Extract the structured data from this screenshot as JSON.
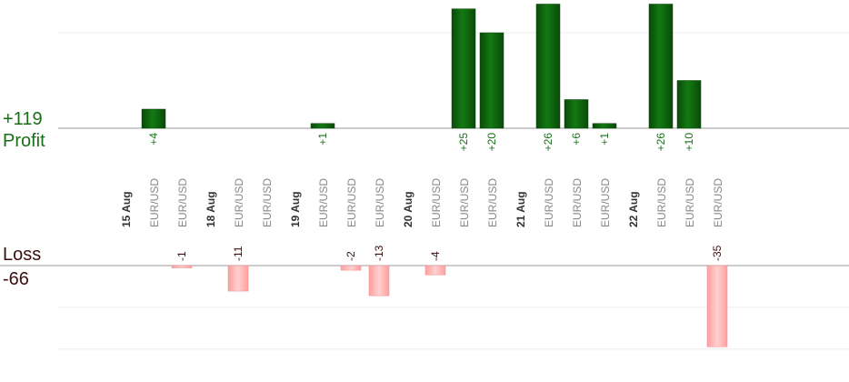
{
  "summary": {
    "profit_value": "+119",
    "profit_label": "Profit",
    "loss_label": "Loss",
    "loss_value": "-66"
  },
  "colors": {
    "profit_bar": "#0c5c0c",
    "loss_bar": "#ffb3b3",
    "profit_text": "#1a6e1a",
    "loss_text": "#3a1010",
    "grid": "#eeeeee",
    "axis": "#999999"
  },
  "chart_data": {
    "type": "bar",
    "profit_panel": {
      "ylim": [
        0,
        52
      ],
      "grid_values": [
        20,
        40
      ]
    },
    "loss_panel": {
      "ylim": [
        0,
        45
      ],
      "grid_values": [
        18,
        36
      ]
    },
    "columns": [
      {
        "kind": "date",
        "label": "15 Aug"
      },
      {
        "kind": "trade",
        "label": "EUR/USD",
        "value": 4,
        "value_label": "+4"
      },
      {
        "kind": "trade",
        "label": "EUR/USD",
        "value": -1,
        "value_label": "-1"
      },
      {
        "kind": "date",
        "label": "18 Aug"
      },
      {
        "kind": "trade",
        "label": "EUR/USD",
        "value": -11,
        "value_label": "-11"
      },
      {
        "kind": "trade",
        "label": "EUR/USD",
        "value": null,
        "value_label": ""
      },
      {
        "kind": "date",
        "label": "19 Aug"
      },
      {
        "kind": "trade",
        "label": "EUR/USD",
        "value": 1,
        "value_label": "+1"
      },
      {
        "kind": "trade",
        "label": "EUR/USD",
        "value": -2,
        "value_label": "-2"
      },
      {
        "kind": "trade",
        "label": "EUR/USD",
        "value": -13,
        "value_label": "-13"
      },
      {
        "kind": "date",
        "label": "20 Aug"
      },
      {
        "kind": "trade",
        "label": "EUR/USD",
        "value": -4,
        "value_label": "-4"
      },
      {
        "kind": "trade",
        "label": "EUR/USD",
        "value": 25,
        "value_label": "+25"
      },
      {
        "kind": "trade",
        "label": "EUR/USD",
        "value": 20,
        "value_label": "+20"
      },
      {
        "kind": "date",
        "label": "21 Aug"
      },
      {
        "kind": "trade",
        "label": "EUR/USD",
        "value": 26,
        "value_label": "+26"
      },
      {
        "kind": "trade",
        "label": "EUR/USD",
        "value": 6,
        "value_label": "+6"
      },
      {
        "kind": "trade",
        "label": "EUR/USD",
        "value": 1,
        "value_label": "+1"
      },
      {
        "kind": "date",
        "label": "22 Aug"
      },
      {
        "kind": "trade",
        "label": "EUR/USD",
        "value": 26,
        "value_label": "+26"
      },
      {
        "kind": "trade",
        "label": "EUR/USD",
        "value": 10,
        "value_label": "+10"
      },
      {
        "kind": "trade",
        "label": "EUR/USD",
        "value": -35,
        "value_label": "-35"
      }
    ]
  }
}
